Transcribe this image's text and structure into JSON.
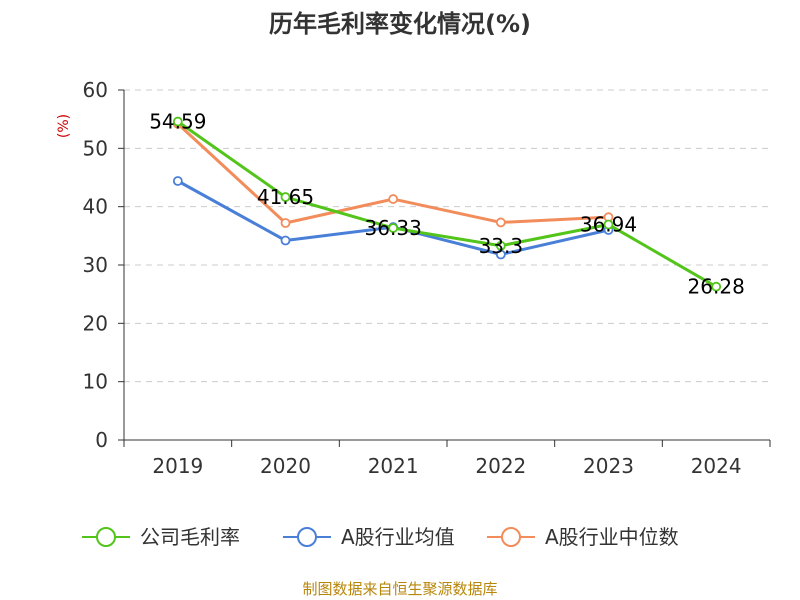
{
  "chart_data": {
    "type": "line",
    "title": "历年毛利率变化情况(%)",
    "ylabel": "(%)",
    "xlabel": "",
    "categories": [
      "2019",
      "2020",
      "2021",
      "2022",
      "2023",
      "2024"
    ],
    "ylim": [
      0,
      60
    ],
    "yticks": [
      0,
      10,
      20,
      30,
      40,
      50,
      60
    ],
    "grid": true,
    "legend_position": "bottom",
    "series": [
      {
        "name": "公司毛利率",
        "color": "#52c41a",
        "values": [
          54.59,
          41.65,
          36.33,
          33.3,
          36.94,
          26.28
        ],
        "labels": [
          "54.59",
          "41.65",
          "36.33",
          "33.3",
          "36.94",
          "26.28"
        ]
      },
      {
        "name": "A股行业均值",
        "color": "#4a7fd8",
        "values": [
          44.4,
          34.2,
          36.5,
          31.8,
          36.0,
          null
        ]
      },
      {
        "name": "A股行业中位数",
        "color": "#f28c5a",
        "values": [
          54.2,
          37.2,
          41.3,
          37.3,
          38.2,
          null
        ]
      }
    ],
    "source_note": "制图数据来自恒生聚源数据库",
    "colors": {
      "axis": "#333333",
      "grid": "#cccccc",
      "unit_label": "#cc0000",
      "source": "#b8860b"
    }
  }
}
